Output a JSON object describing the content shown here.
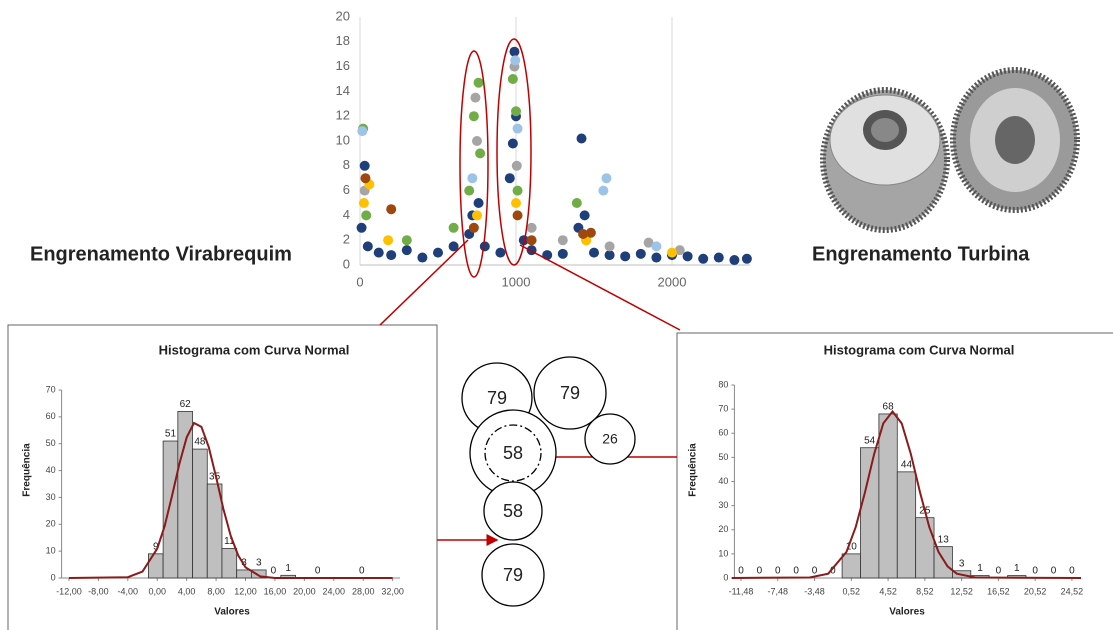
{
  "labels": {
    "left": "Engrenamento Virabrequim",
    "right": "Engrenamento Turbina"
  },
  "circles": [
    79,
    79,
    58,
    26,
    58,
    79
  ],
  "chart_data": [
    {
      "type": "scatter",
      "xlim": [
        0,
        2500
      ],
      "ylim": [
        0,
        20
      ],
      "xticks": [
        0,
        1000,
        2000
      ],
      "yticks": [
        0,
        2,
        4,
        6,
        8,
        10,
        12,
        14,
        16,
        18,
        20
      ],
      "grid": "x",
      "series": [
        {
          "color": "#1f3f7a",
          "x": [
            10,
            30,
            50,
            120,
            200,
            300,
            400,
            500,
            600,
            700,
            720,
            760,
            800,
            900,
            960,
            980,
            990,
            1000,
            1050,
            1100,
            1200,
            1300,
            1400,
            1420,
            1440,
            1500,
            1600,
            1700,
            1800,
            1900,
            2000,
            2100,
            2200,
            2300,
            2400,
            2480
          ],
          "values": [
            3,
            8,
            1.5,
            1,
            0.8,
            1.2,
            0.6,
            1,
            1.5,
            2.5,
            4,
            5,
            1.5,
            1,
            7,
            9.8,
            17.2,
            12,
            2,
            1.2,
            0.8,
            0.9,
            3,
            10.2,
            4,
            1,
            0.8,
            0.7,
            0.9,
            0.6,
            0.8,
            0.7,
            0.5,
            0.6,
            0.4,
            0.5
          ]
        },
        {
          "color": "#70ad47",
          "x": [
            20,
            40,
            700,
            730,
            760,
            770,
            980,
            1000,
            1010,
            1390,
            1450,
            300,
            600
          ],
          "values": [
            11,
            4,
            6,
            12,
            14.7,
            9,
            15,
            12.4,
            6,
            5,
            2,
            2,
            3
          ]
        },
        {
          "color": "#a5a5a5",
          "x": [
            30,
            740,
            750,
            990,
            1005,
            1100,
            1300,
            1600,
            1850,
            2050
          ],
          "values": [
            6,
            13.5,
            10,
            16,
            8,
            3,
            2,
            1.5,
            1.8,
            1.2
          ]
        },
        {
          "color": "#9dc3e6",
          "x": [
            15,
            720,
            995,
            1010,
            1560,
            1580,
            1900
          ],
          "values": [
            10.8,
            7,
            16.5,
            11,
            6,
            7,
            1.5
          ]
        },
        {
          "color": "#ffc000",
          "x": [
            25,
            60,
            180,
            750,
            1000,
            1450,
            2000
          ],
          "values": [
            5,
            6.5,
            2,
            4,
            5,
            2,
            1
          ]
        },
        {
          "color": "#9e480e",
          "x": [
            35,
            200,
            730,
            1010,
            1430,
            1480,
            1100
          ],
          "values": [
            7,
            4.5,
            3,
            4,
            2.5,
            2.6,
            2
          ]
        }
      ]
    },
    {
      "type": "histogram",
      "title": "Histograma com Curva Normal",
      "xlabel": "Valores",
      "ylabel": "Frequência",
      "xlim": [
        -13,
        33
      ],
      "ylim": [
        0,
        70
      ],
      "bar_color": "#bfbfbf",
      "xticks": [
        {
          "value": -12,
          "label": "-12,00"
        },
        {
          "value": -8,
          "label": "-8,00"
        },
        {
          "value": -4,
          "label": "-4,00"
        },
        {
          "value": 0,
          "label": "0,00"
        },
        {
          "value": 4,
          "label": "4,00"
        },
        {
          "value": 8,
          "label": "8,00"
        },
        {
          "value": 12,
          "label": "12,00"
        },
        {
          "value": 16,
          "label": "16,00"
        },
        {
          "value": 20,
          "label": "20,00"
        },
        {
          "value": 24,
          "label": "24,00"
        },
        {
          "value": 28,
          "label": "28,00"
        },
        {
          "value": 32,
          "label": "32,00"
        }
      ],
      "yticks": [
        0,
        10,
        20,
        30,
        40,
        50,
        60,
        70
      ],
      "bins": [
        -1.2,
        0.8,
        2.8,
        4.8,
        6.8,
        8.8,
        10.8,
        12.8,
        14.8,
        16.8,
        18.8,
        20.8,
        22.8,
        24.8,
        26.8,
        28.8
      ],
      "values": [
        9,
        51,
        62,
        48,
        35,
        11,
        3,
        3,
        0,
        1,
        0,
        0,
        0,
        0,
        0
      ],
      "value_labels": [
        "9",
        "51",
        "62",
        "48",
        "35",
        "11",
        "3",
        "3",
        "0",
        "1",
        null,
        "0",
        null,
        null,
        "0"
      ],
      "curve": {
        "color": "#8b1a1a",
        "x": [
          -12,
          -4,
          -2,
          0,
          1,
          2,
          3,
          4,
          5,
          6,
          7,
          8,
          9,
          10,
          11,
          12,
          14,
          16,
          32
        ],
        "values": [
          0,
          0.3,
          2.4,
          10.9,
          19.3,
          30.4,
          42.4,
          52.4,
          57.7,
          56.3,
          48.8,
          37.6,
          25.7,
          15.6,
          8.4,
          4.0,
          0.6,
          0,
          0
        ]
      }
    },
    {
      "type": "histogram",
      "title": "Histograma com Curva Normal",
      "xlabel": "Valores",
      "ylabel": "Frequência",
      "xlim": [
        -12.2,
        25.4
      ],
      "ylim": [
        0,
        80
      ],
      "bar_color": "#bfbfbf",
      "xticks": [
        {
          "value": -11.48,
          "label": "-11,48"
        },
        {
          "value": -7.48,
          "label": "-7,48"
        },
        {
          "value": -3.48,
          "label": "-3,48"
        },
        {
          "value": 0.52,
          "label": "0,52"
        },
        {
          "value": 4.52,
          "label": "4,52"
        },
        {
          "value": 8.52,
          "label": "8,52"
        },
        {
          "value": 12.52,
          "label": "12,52"
        },
        {
          "value": 16.52,
          "label": "16,52"
        },
        {
          "value": 20.52,
          "label": "20,52"
        },
        {
          "value": 24.52,
          "label": "24,52"
        }
      ],
      "yticks": [
        0,
        10,
        20,
        30,
        40,
        50,
        60,
        70,
        80
      ],
      "bins": [
        -12.48,
        -10.48,
        -8.48,
        -6.48,
        -4.48,
        -2.48,
        -0.48,
        1.52,
        3.52,
        5.52,
        7.52,
        9.52,
        11.52,
        13.52,
        15.52,
        17.52,
        19.52,
        21.52,
        23.52,
        25.52
      ],
      "values": [
        0,
        0,
        0,
        0,
        0,
        0,
        10,
        54,
        68,
        44,
        25,
        13,
        3,
        1,
        0,
        1,
        0,
        0,
        0
      ],
      "curve": {
        "color": "#8b1a1a",
        "x": [
          -12.48,
          -4,
          -2,
          0,
          1,
          2,
          3,
          4,
          5,
          6,
          7,
          8,
          9,
          10,
          11,
          12,
          14,
          25.52
        ],
        "values": [
          0,
          0.2,
          1.8,
          10.8,
          21.1,
          35.4,
          51.3,
          64.1,
          69,
          64.1,
          51.3,
          35.4,
          21.1,
          10.8,
          4.8,
          1.8,
          0.2,
          0
        ]
      }
    }
  ]
}
